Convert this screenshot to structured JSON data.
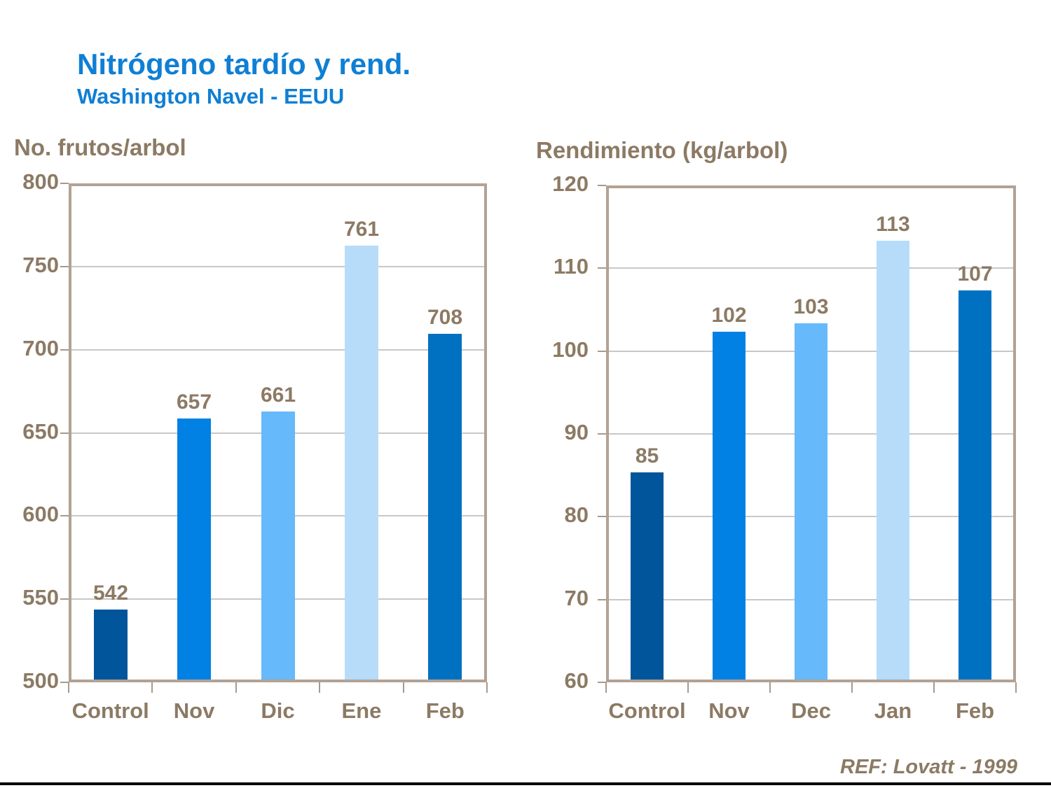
{
  "header": {
    "title": "Nitrógeno tardío y rend.",
    "subtitle": "Washington Navel - EEUU"
  },
  "footer": {
    "ref": "REF: Lovatt - 1999"
  },
  "colors": {
    "title_blue": "#0f7fd4",
    "axis_text_brown": "#8c7a64",
    "frame_tan": "#b3a294",
    "grid_gray": "#c8c8c8",
    "bottom_rule_black": "#000000"
  },
  "chart_data": [
    {
      "type": "bar",
      "title": "No. frutos/arbol",
      "categories": [
        "Control",
        "Nov",
        "Dic",
        "Ene",
        "Feb"
      ],
      "values": [
        542,
        657,
        661,
        761,
        708
      ],
      "bar_colors": [
        "#00559b",
        "#0081e3",
        "#66b9fb",
        "#b6dcfa",
        "#0071c1"
      ],
      "ylim": [
        500,
        800
      ],
      "ytick_step": 50,
      "grid": true,
      "legend": false,
      "value_labels": true
    },
    {
      "type": "bar",
      "title": "Rendimiento (kg/arbol)",
      "categories": [
        "Control",
        "Nov",
        "Dec",
        "Jan",
        "Feb"
      ],
      "values": [
        85,
        102,
        103,
        113,
        107
      ],
      "bar_colors": [
        "#00559b",
        "#0081e3",
        "#66b9fb",
        "#b6dcfa",
        "#0071c1"
      ],
      "ylim": [
        60,
        120
      ],
      "ytick_step": 10,
      "grid": true,
      "legend": false,
      "value_labels": true
    }
  ]
}
